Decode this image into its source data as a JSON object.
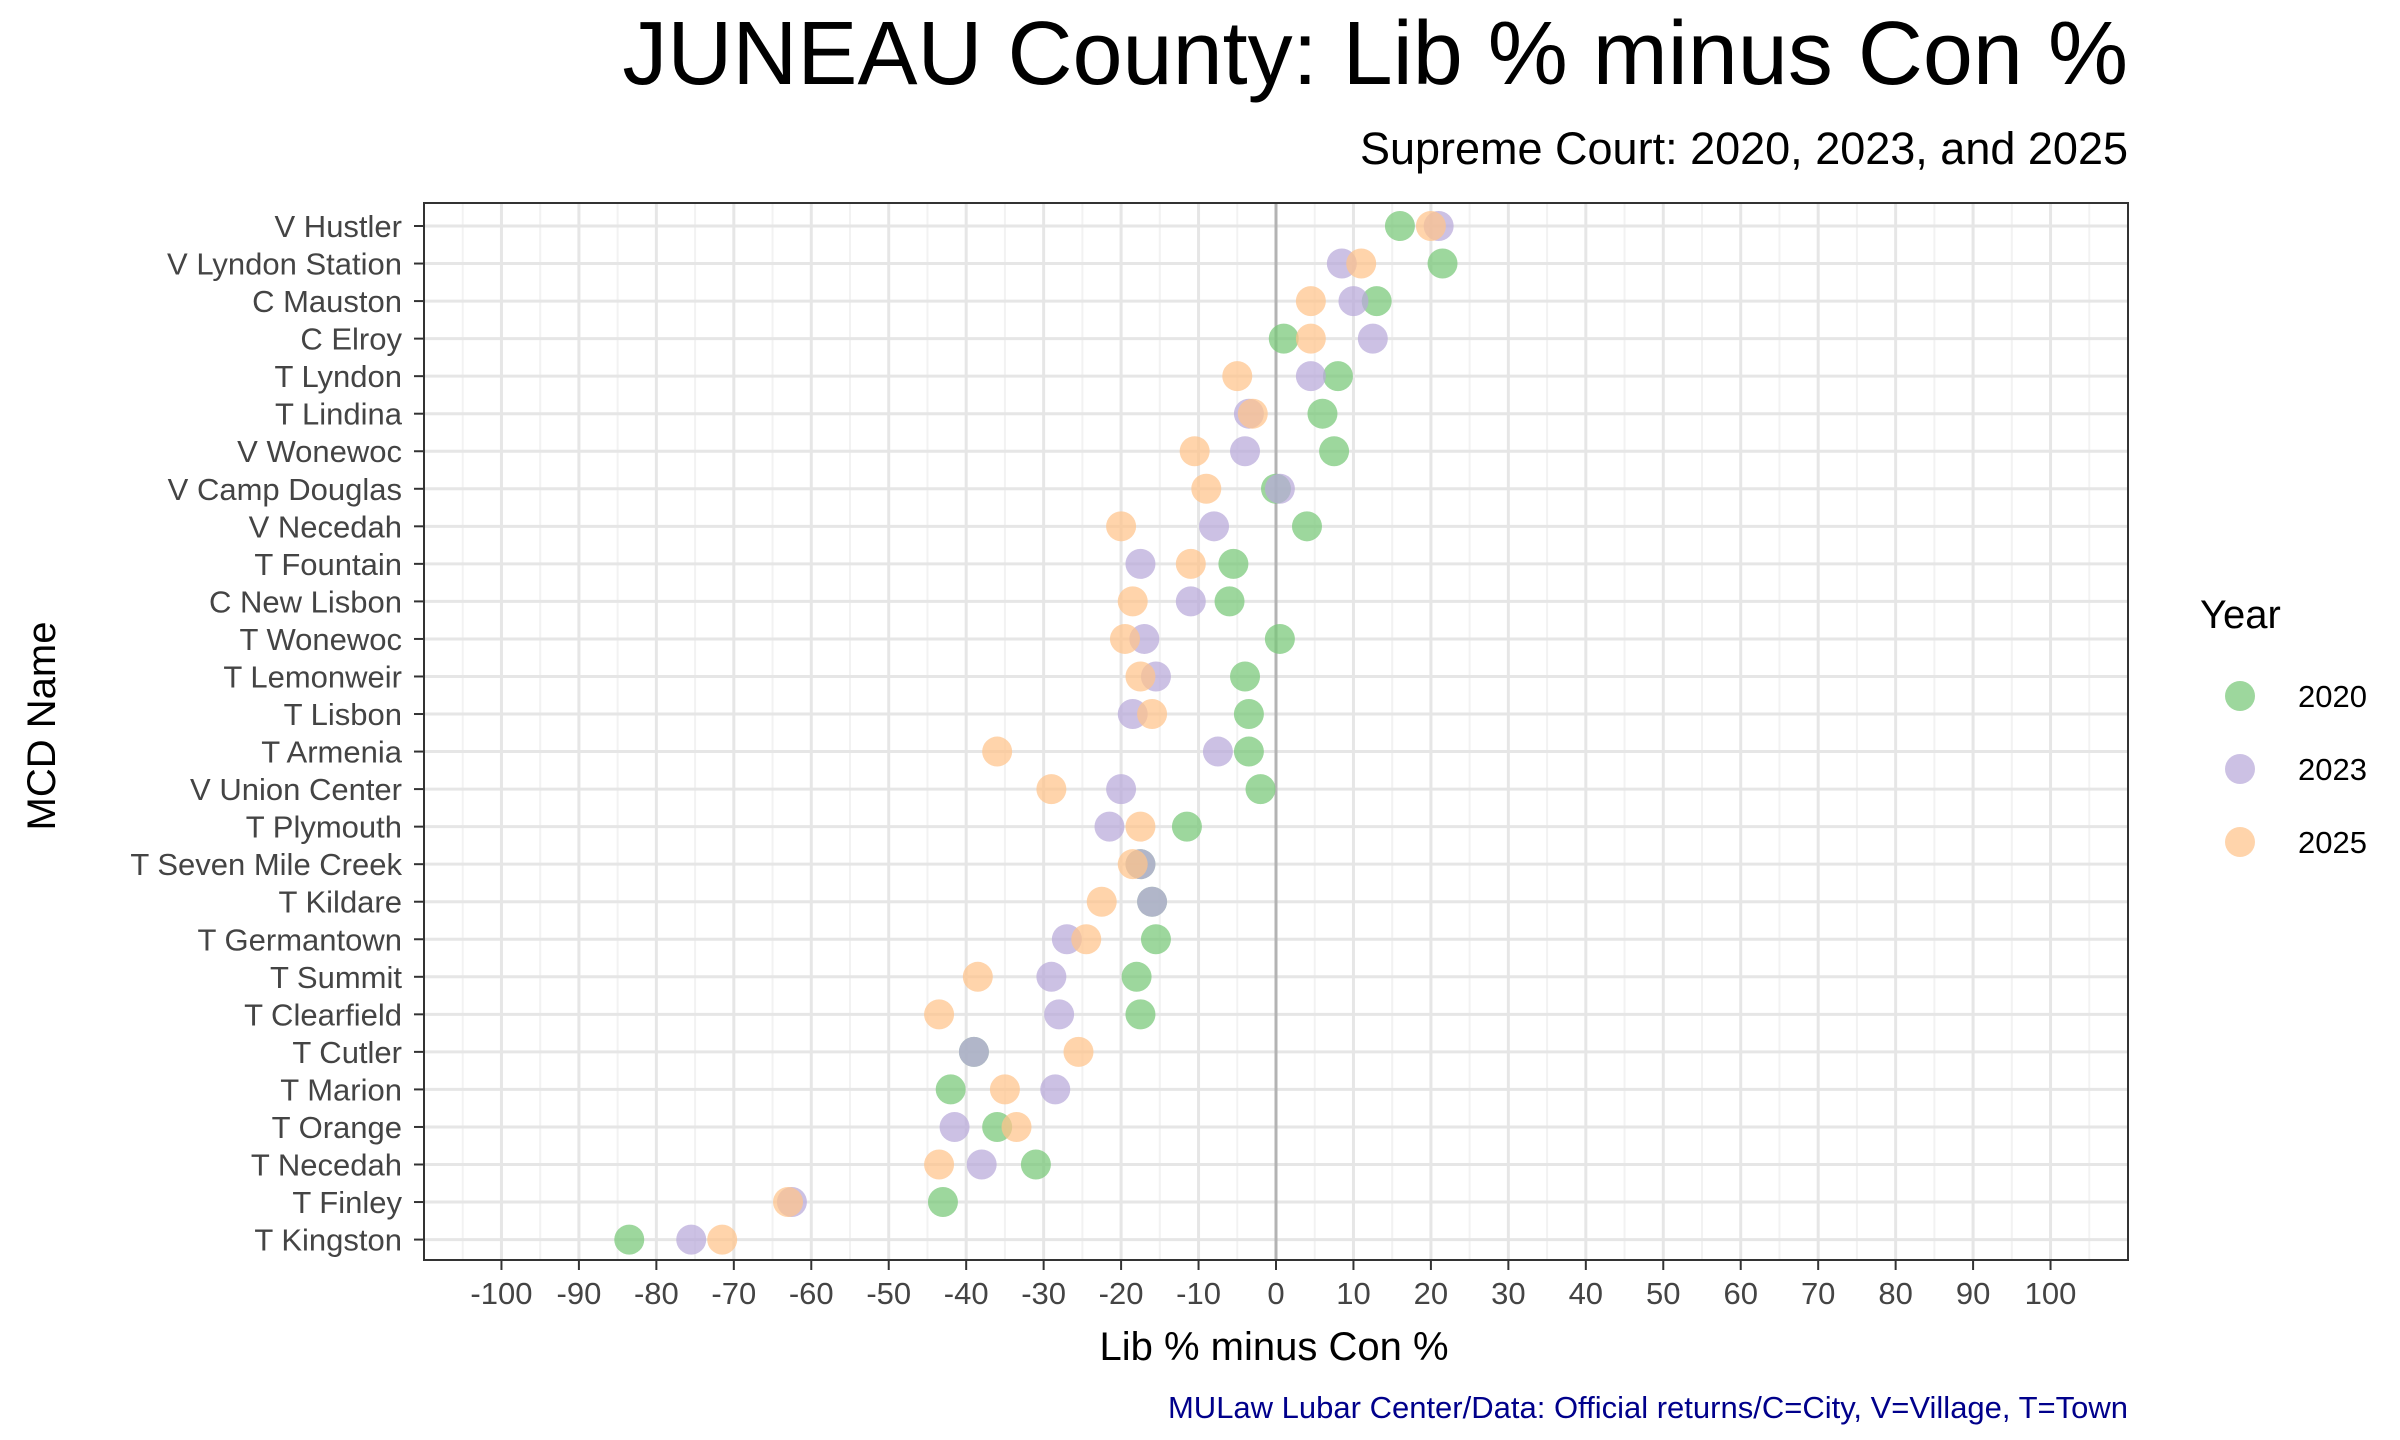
{
  "chart_data": {
    "type": "scatter",
    "title": "JUNEAU County: Lib % minus Con %",
    "subtitle": "Supreme Court: 2020, 2023, and 2025",
    "xlabel": "Lib % minus Con %",
    "ylabel": "MCD Name",
    "caption": "MULaw Lubar Center/Data: Official returns/C=City, V=Village, T=Town",
    "xlim": [
      -110,
      110
    ],
    "xticks": [
      -100,
      -90,
      -80,
      -70,
      -60,
      -50,
      -40,
      -30,
      -20,
      -10,
      0,
      10,
      20,
      30,
      40,
      50,
      60,
      70,
      80,
      90,
      100
    ],
    "grid": true,
    "legend_title": "Year",
    "legend_position": "right",
    "categories": [
      "V Hustler",
      "V Lyndon Station",
      "C Mauston",
      "C Elroy",
      "T Lyndon",
      "T Lindina",
      "V Wonewoc",
      "V Camp Douglas",
      "V Necedah",
      "T Fountain",
      "C New Lisbon",
      "T Wonewoc",
      "T Lemonweir",
      "T Lisbon",
      "T Armenia",
      "V Union Center",
      "T Plymouth",
      "T Seven Mile Creek",
      "T Kildare",
      "T Germantown",
      "T Summit",
      "T Clearfield",
      "T Cutler",
      "T Marion",
      "T Orange",
      "T Necedah",
      "T Finley",
      "T Kingston"
    ],
    "series": [
      {
        "name": "2020",
        "color": "#77c877",
        "values": [
          16,
          21.5,
          13,
          1,
          8,
          6,
          7.5,
          0,
          4,
          -5.5,
          -6,
          0.5,
          -4,
          -3.5,
          -3.5,
          -2,
          -11.5,
          -17.5,
          -16,
          -15.5,
          -18,
          -17.5,
          -39,
          -42,
          -36,
          -31,
          -43,
          -83.5
        ]
      },
      {
        "name": "2023",
        "color": "#b8a9d9",
        "values": [
          21,
          8.5,
          10,
          12.5,
          4.5,
          -3.5,
          -4,
          0.5,
          -8,
          -17.5,
          -11,
          -17,
          -15.5,
          -18.5,
          -7.5,
          -20,
          -21.5,
          -17.5,
          -16,
          -27,
          -29,
          -28,
          -39,
          -28.5,
          -41.5,
          -38,
          -62.5,
          -75.5
        ]
      },
      {
        "name": "2025",
        "color": "#ffc48a",
        "values": [
          20,
          11,
          4.5,
          4.5,
          -5,
          -3,
          -10.5,
          -9,
          -20,
          -11,
          -18.5,
          -19.5,
          -17.5,
          -16,
          -36,
          -29,
          -17.5,
          -18.5,
          -22.5,
          -24.5,
          -38.5,
          -43.5,
          -25.5,
          -35,
          -33.5,
          -43.5,
          -63,
          -71.5
        ]
      }
    ]
  }
}
